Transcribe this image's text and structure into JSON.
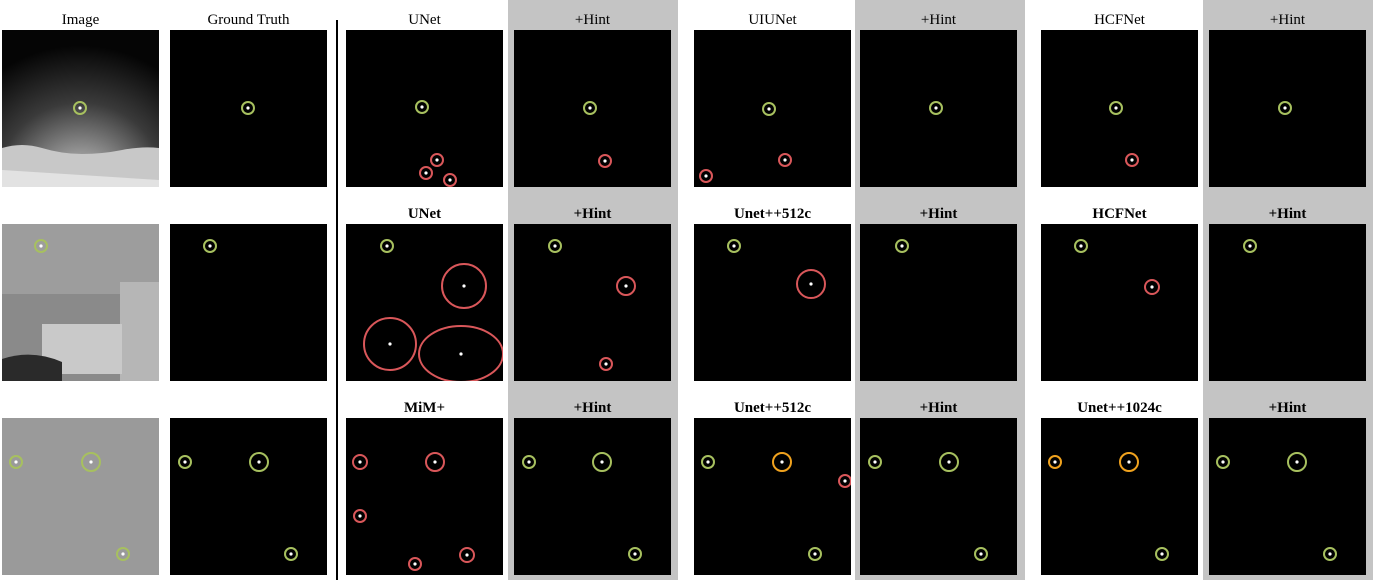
{
  "figure": {
    "rows": [
      {
        "column_titles": [
          "Image",
          "Ground Truth",
          "UNet",
          "+Hint",
          "UIUNet",
          "+Hint",
          "HCFNet",
          "+Hint"
        ],
        "title_weight": "normal"
      },
      {
        "column_titles": [
          "",
          "",
          "UNet",
          "+Hint",
          "Unet++512c",
          "+Hint",
          "HCFNet",
          "+Hint"
        ],
        "title_weight": "bold"
      },
      {
        "column_titles": [
          "",
          "",
          "MiM+",
          "+Hint",
          "Unet++512c",
          "+Hint",
          "Unet++1024c",
          "+Hint"
        ],
        "title_weight": "bold"
      }
    ],
    "hint_columns": [
      3,
      5,
      7
    ],
    "colors": {
      "true_detection": "#a7c05f",
      "false_alarm": "#d9575a",
      "missed_target": "#f0a21e",
      "hint_background": "#c4c4c4",
      "panel_background": "#000000"
    },
    "icons": [
      "green-circle-icon",
      "red-circle-icon",
      "orange-circle-icon"
    ]
  }
}
